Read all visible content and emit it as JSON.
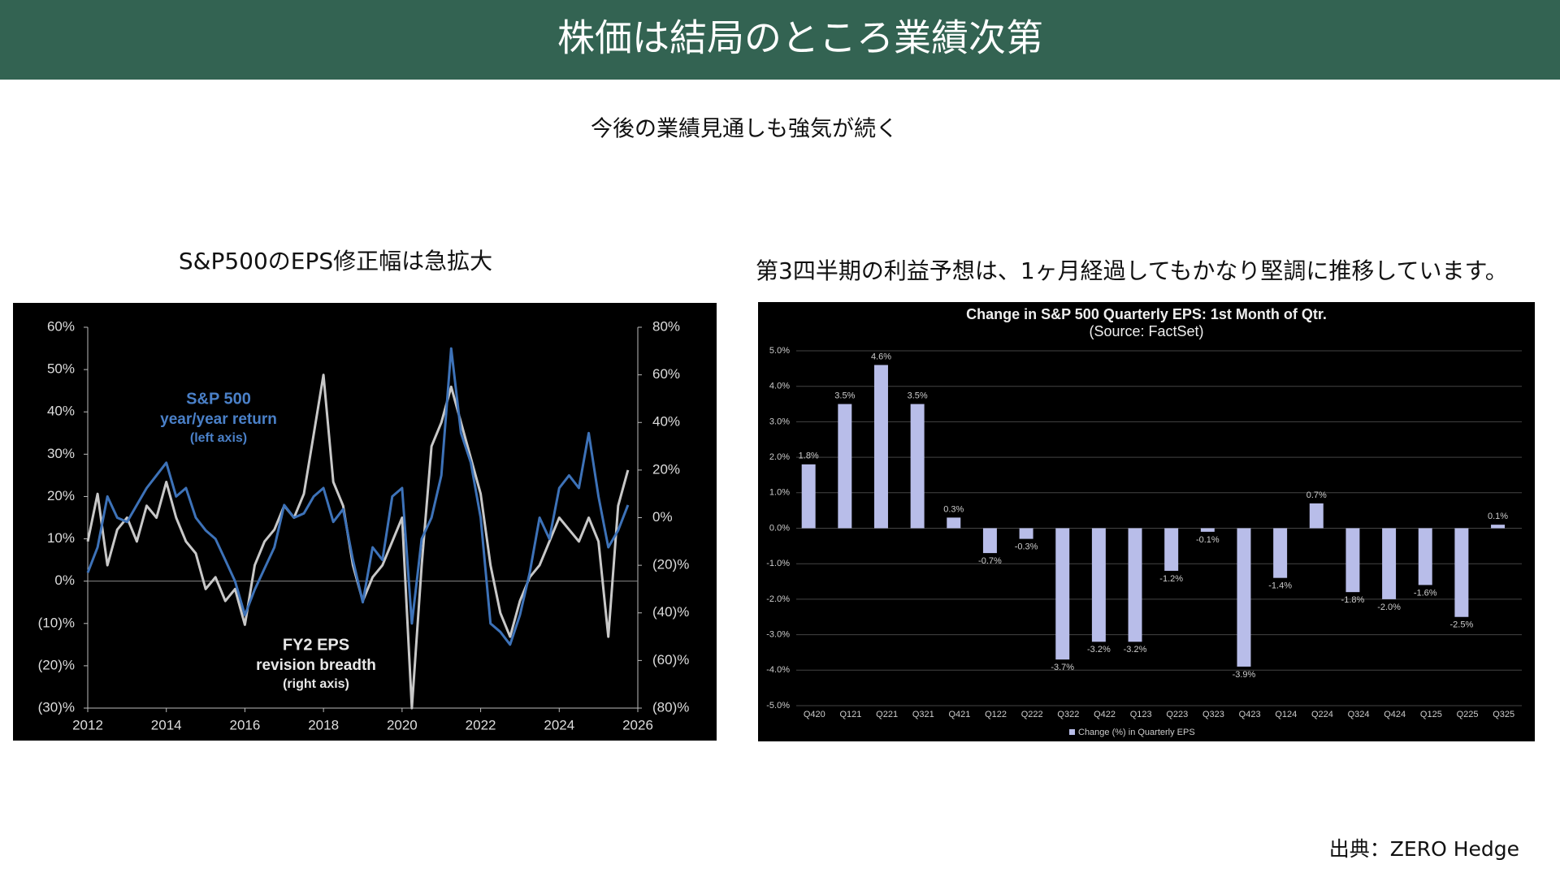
{
  "header": {
    "title": "株価は結局のところ業績次第",
    "subtitle": "今後の業績見通しも強気が続く",
    "source": "出典：ZERO Hedge"
  },
  "chart_data": [
    {
      "type": "line",
      "caption": "S&P500のEPS修正幅は急拡大",
      "x": [
        2012,
        2012.25,
        2012.5,
        2012.75,
        2013,
        2013.25,
        2013.5,
        2013.75,
        2014,
        2014.25,
        2014.5,
        2014.75,
        2015,
        2015.25,
        2015.5,
        2015.75,
        2016,
        2016.25,
        2016.5,
        2016.75,
        2017,
        2017.25,
        2017.5,
        2017.75,
        2018,
        2018.25,
        2018.5,
        2018.75,
        2019,
        2019.25,
        2019.5,
        2019.75,
        2020,
        2020.25,
        2020.5,
        2020.75,
        2021,
        2021.25,
        2021.5,
        2021.75,
        2022,
        2022.25,
        2022.5,
        2022.75,
        2023,
        2023.25,
        2023.5,
        2023.75,
        2024,
        2024.25,
        2024.5,
        2024.75,
        2025,
        2025.25,
        2025.5,
        2025.75
      ],
      "xlim": [
        2012,
        2026
      ],
      "xticks": [
        2012,
        2014,
        2016,
        2018,
        2020,
        2022,
        2024,
        2026
      ],
      "ylim": [
        -30,
        60
      ],
      "yticks": [
        {
          "value": 60,
          "label": "60%"
        },
        {
          "value": 50,
          "label": "50%"
        },
        {
          "value": 40,
          "label": "40%"
        },
        {
          "value": 30,
          "label": "30%"
        },
        {
          "value": 20,
          "label": "20%"
        },
        {
          "value": 10,
          "label": "10%"
        },
        {
          "value": 0,
          "label": "0%"
        },
        {
          "value": -10,
          "label": "(10)%"
        },
        {
          "value": -20,
          "label": "(20)%"
        },
        {
          "value": -30,
          "label": "(30)%"
        }
      ],
      "y2lim": [
        -80,
        80
      ],
      "y2ticks": [
        {
          "value": 80,
          "label": "80%"
        },
        {
          "value": 60,
          "label": "60%"
        },
        {
          "value": 40,
          "label": "40%"
        },
        {
          "value": 20,
          "label": "20%"
        },
        {
          "value": 0,
          "label": "0%"
        },
        {
          "value": -20,
          "label": "(20)%"
        },
        {
          "value": -40,
          "label": "(40)%"
        },
        {
          "value": -60,
          "label": "(60)%"
        },
        {
          "value": -80,
          "label": "(80)%"
        }
      ],
      "series": [
        {
          "name": "S&P 500",
          "label_lines": [
            "year/year return",
            "(left axis)"
          ],
          "color": "#3d72b8",
          "values": [
            2,
            8,
            20,
            15,
            14,
            18,
            22,
            25,
            28,
            20,
            22,
            15,
            12,
            10,
            5,
            0,
            -8,
            -2,
            3,
            8,
            18,
            15,
            16,
            20,
            22,
            14,
            17,
            5,
            -5,
            8,
            5,
            20,
            22,
            -10,
            10,
            15,
            25,
            55,
            35,
            28,
            15,
            -10,
            -12,
            -15,
            -8,
            2,
            15,
            10,
            22,
            25,
            22,
            35,
            20,
            8,
            12,
            18
          ]
        },
        {
          "name": "FY2 EPS",
          "label_lines": [
            "revision breadth",
            "(right axis)"
          ],
          "color": "#c8c8c8",
          "axis": "y2",
          "values": [
            -10,
            10,
            -20,
            -5,
            0,
            -10,
            5,
            0,
            15,
            0,
            -10,
            -15,
            -30,
            -25,
            -35,
            -30,
            -45,
            -20,
            -10,
            -5,
            5,
            0,
            10,
            35,
            60,
            15,
            5,
            -20,
            -35,
            -25,
            -20,
            -10,
            0,
            -80,
            -20,
            30,
            40,
            55,
            40,
            25,
            10,
            -20,
            -40,
            -50,
            -35,
            -25,
            -20,
            -10,
            0,
            -5,
            -10,
            0,
            -10,
            -50,
            5,
            20
          ]
        }
      ]
    },
    {
      "type": "bar",
      "caption": "第3四半期の利益予想は、1ヶ月経過してもかなり堅調に推移しています。",
      "title": "Change in S&P 500 Quarterly EPS: 1st Month of Qtr.",
      "subtitle": "(Source: FactSet)",
      "categories": [
        "Q420",
        "Q121",
        "Q221",
        "Q321",
        "Q421",
        "Q122",
        "Q222",
        "Q322",
        "Q422",
        "Q123",
        "Q223",
        "Q323",
        "Q423",
        "Q124",
        "Q224",
        "Q324",
        "Q424",
        "Q125",
        "Q225",
        "Q325"
      ],
      "values": [
        1.8,
        3.5,
        4.6,
        3.5,
        0.3,
        -0.7,
        -0.3,
        -3.7,
        -3.2,
        -3.2,
        -1.2,
        -0.1,
        -3.9,
        -1.4,
        0.7,
        -1.8,
        -2.0,
        -1.6,
        -2.5,
        0.1
      ],
      "value_labels": [
        "1.8%",
        "3.5%",
        "4.6%",
        "3.5%",
        "0.3%",
        "-0.7%",
        "-0.3%",
        "-3.7%",
        "-3.2%",
        "-3.2%",
        "-1.2%",
        "-0.1%",
        "-3.9%",
        "-1.4%",
        "0.7%",
        "-1.8%",
        "-2.0%",
        "-1.6%",
        "-2.5%",
        "0.1%"
      ],
      "color": "#b8bde9",
      "grid": true,
      "legend": "Change (%) in Quarterly EPS",
      "ylim": [
        -5,
        5
      ],
      "yticks": [
        {
          "value": 5,
          "label": "5.0%"
        },
        {
          "value": 4,
          "label": "4.0%"
        },
        {
          "value": 3,
          "label": "3.0%"
        },
        {
          "value": 2,
          "label": "2.0%"
        },
        {
          "value": 1,
          "label": "1.0%"
        },
        {
          "value": 0,
          "label": "0.0%"
        },
        {
          "value": -1,
          "label": "-1.0%"
        },
        {
          "value": -2,
          "label": "-2.0%"
        },
        {
          "value": -3,
          "label": "-3.0%"
        },
        {
          "value": -4,
          "label": "-4.0%"
        },
        {
          "value": -5,
          "label": "-5.0%"
        }
      ]
    }
  ]
}
